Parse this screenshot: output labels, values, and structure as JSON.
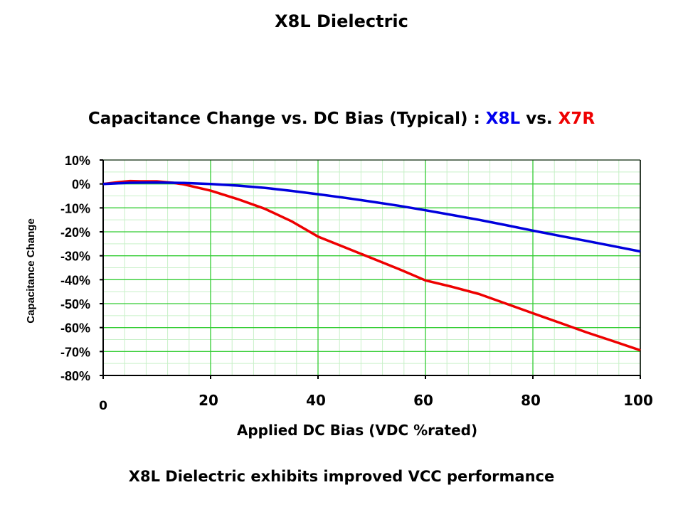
{
  "title": "X8L Dielectric",
  "footer": "X8L Dielectric exhibits improved VCC performance",
  "chart_data": {
    "type": "line",
    "title_parts": [
      {
        "text": "Capacitance Change vs. DC Bias (Typical) : ",
        "color": "#000000"
      },
      {
        "text": "X8L",
        "color": "#0000ee"
      },
      {
        "text": " vs. ",
        "color": "#000000"
      },
      {
        "text": "X7R",
        "color": "#ee0000"
      }
    ],
    "xlabel": "Applied DC Bias (VDC %rated)",
    "ylabel": "Capacitance Change",
    "xlim": [
      0,
      100
    ],
    "ylim": [
      -80,
      10
    ],
    "xticks": [
      {
        "v": 0,
        "label": "0"
      },
      {
        "v": 20,
        "label": "20"
      },
      {
        "v": 40,
        "label": "40"
      },
      {
        "v": 60,
        "label": "60"
      },
      {
        "v": 80,
        "label": "80"
      },
      {
        "v": 100,
        "label": "100"
      }
    ],
    "yticks": [
      {
        "v": 10,
        "label": "10%"
      },
      {
        "v": 0,
        "label": "0%"
      },
      {
        "v": -10,
        "label": "-10%"
      },
      {
        "v": -20,
        "label": "-20%"
      },
      {
        "v": -30,
        "label": "-30%"
      },
      {
        "v": -40,
        "label": "-40%"
      },
      {
        "v": -50,
        "label": "-50%"
      },
      {
        "v": -60,
        "label": "-60%"
      },
      {
        "v": -70,
        "label": "-70%"
      },
      {
        "v": -80,
        "label": "-80%"
      }
    ],
    "grid": true,
    "series": [
      {
        "name": "X8L",
        "color": "#0000dd",
        "x": [
          0,
          5,
          10,
          15,
          20,
          25,
          30,
          35,
          40,
          45,
          50,
          55,
          60,
          65,
          70,
          75,
          80,
          85,
          90,
          95,
          100
        ],
        "y": [
          0,
          0.5,
          0.6,
          0.4,
          0,
          -0.7,
          -1.6,
          -2.9,
          -4.3,
          -5.8,
          -7.4,
          -9.1,
          -11,
          -13,
          -15,
          -17.2,
          -19.5,
          -21.7,
          -23.8,
          -26,
          -28.2
        ]
      },
      {
        "name": "X7R",
        "color": "#ee0000",
        "x": [
          0,
          3,
          5,
          7,
          10,
          13,
          15,
          20,
          25,
          30,
          35,
          40,
          45,
          50,
          55,
          60,
          65,
          70,
          75,
          80,
          85,
          90,
          95,
          100
        ],
        "y": [
          0,
          0.8,
          1.2,
          1.1,
          1.1,
          0.5,
          -0.2,
          -2.8,
          -6.3,
          -10.3,
          -15.5,
          -22,
          -26.5,
          -31,
          -35.5,
          -40.3,
          -43,
          -46,
          -50,
          -54,
          -58,
          -62,
          -65.7,
          -69.5
        ]
      }
    ]
  }
}
